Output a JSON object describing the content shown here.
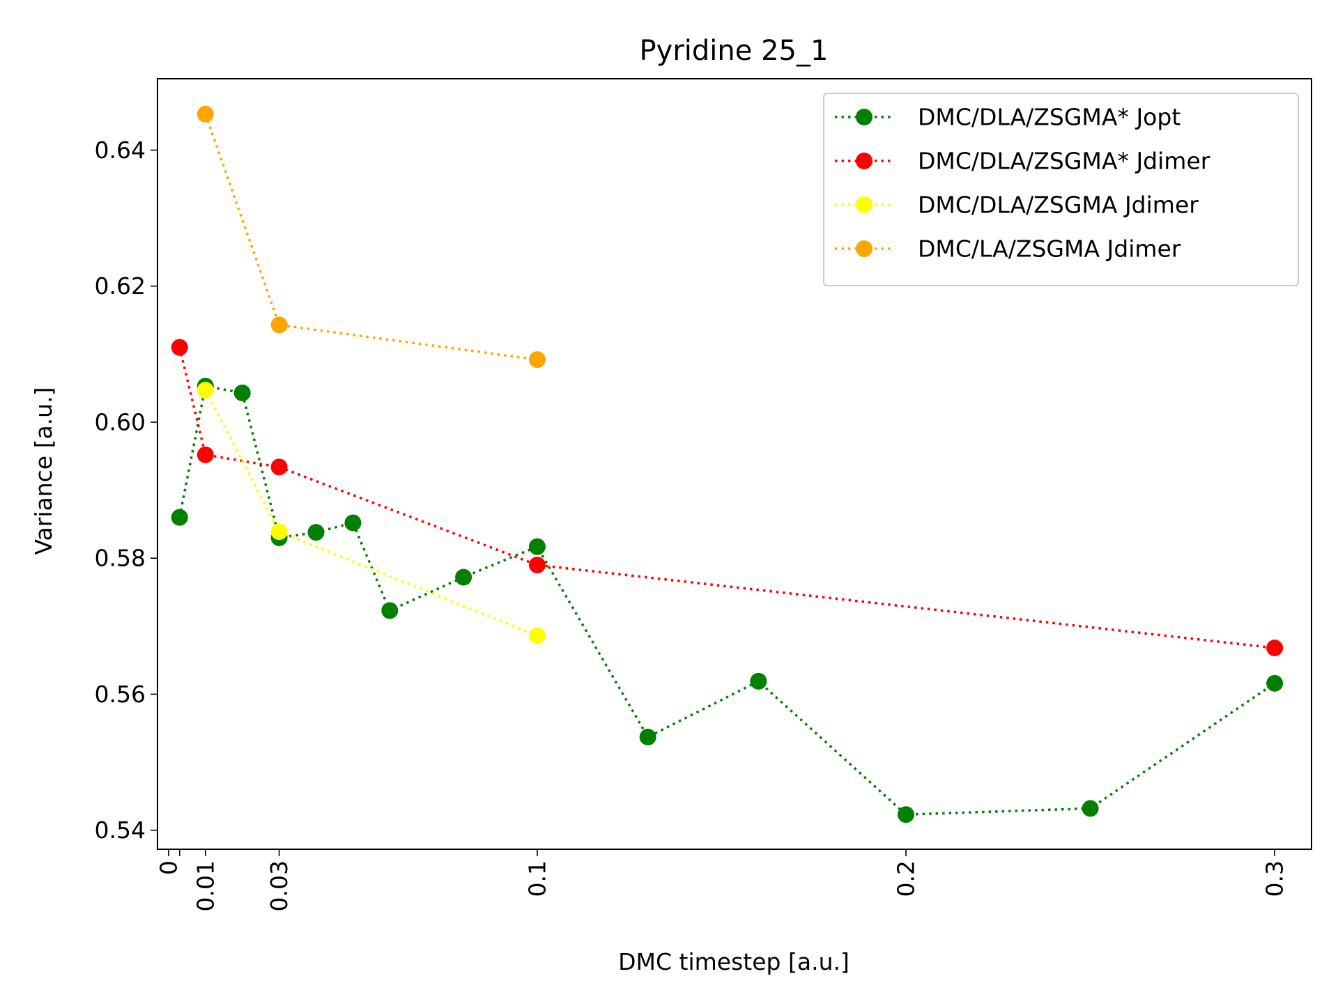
{
  "chart_data": {
    "type": "line",
    "title": "Pyridine 25_1",
    "xlabel": "DMC timestep [a.u.]",
    "ylabel": "Variance [a.u.]",
    "xlim": [
      -0.003,
      0.31
    ],
    "ylim": [
      0.5372,
      0.6505
    ],
    "x_ticks": [
      {
        "value": 0,
        "label": "0"
      },
      {
        "value": 0.003,
        "label": ""
      },
      {
        "value": 0.01,
        "label": "0.01"
      },
      {
        "value": 0.03,
        "label": "0.03"
      },
      {
        "value": 0.1,
        "label": "0.1"
      },
      {
        "value": 0.2,
        "label": "0.2"
      },
      {
        "value": 0.3,
        "label": "0.3"
      }
    ],
    "y_ticks": [
      {
        "value": 0.54,
        "label": "0.54"
      },
      {
        "value": 0.56,
        "label": "0.56"
      },
      {
        "value": 0.58,
        "label": "0.58"
      },
      {
        "value": 0.6,
        "label": "0.60"
      },
      {
        "value": 0.62,
        "label": "0.62"
      },
      {
        "value": 0.64,
        "label": "0.64"
      }
    ],
    "grid": false,
    "legend_position": "top-right",
    "line_style": "dotted",
    "series": [
      {
        "name": "DMC/DLA/ZSGMA* Jopt",
        "color": "#008000",
        "points": [
          [
            0.003,
            0.586
          ],
          [
            0.01,
            0.6053
          ],
          [
            0.02,
            0.6043
          ],
          [
            0.03,
            0.583
          ],
          [
            0.04,
            0.5838
          ],
          [
            0.05,
            0.5852
          ],
          [
            0.06,
            0.5723
          ],
          [
            0.08,
            0.5772
          ],
          [
            0.1,
            0.5817
          ],
          [
            0.13,
            0.5537
          ],
          [
            0.16,
            0.5619
          ],
          [
            0.2,
            0.5423
          ],
          [
            0.25,
            0.5432
          ],
          [
            0.3,
            0.5616
          ]
        ]
      },
      {
        "name": "DMC/DLA/ZSGMA* Jdimer",
        "color": "#ff0000",
        "points": [
          [
            0.003,
            0.611
          ],
          [
            0.01,
            0.5952
          ],
          [
            0.03,
            0.5934
          ],
          [
            0.1,
            0.579
          ],
          [
            0.3,
            0.5668
          ]
        ]
      },
      {
        "name": "DMC/DLA/ZSGMA Jdimer",
        "color": "#ffff00",
        "points": [
          [
            0.01,
            0.6047
          ],
          [
            0.03,
            0.5839
          ],
          [
            0.1,
            0.5686
          ]
        ]
      },
      {
        "name": "DMC/LA/ZSGMA Jdimer",
        "color": "#ffa500",
        "points": [
          [
            0.01,
            0.6453
          ],
          [
            0.03,
            0.6143
          ],
          [
            0.1,
            0.6092
          ]
        ]
      }
    ]
  }
}
